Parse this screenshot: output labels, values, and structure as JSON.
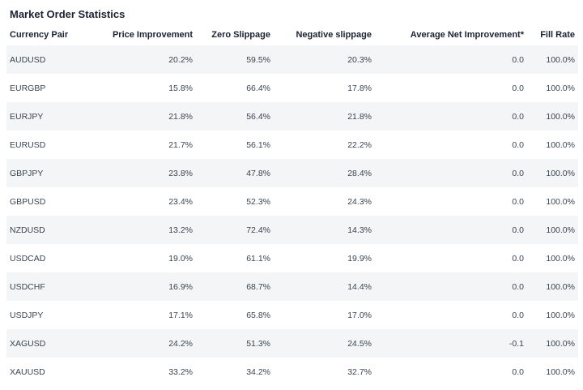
{
  "title": "Market Order Statistics",
  "table": {
    "headers": {
      "pair": "Currency Pair",
      "price_improvement": "Price Improvement",
      "zero_slippage": "Zero Slippage",
      "negative_slippage": "Negative slippage",
      "avg_net_improvement": "Average Net Improvement*",
      "fill_rate": "Fill Rate"
    },
    "rows": [
      {
        "pair": "AUDUSD",
        "price_improvement": "20.2%",
        "zero_slippage": "59.5%",
        "negative_slippage": "20.3%",
        "avg_net_improvement": "0.0",
        "fill_rate": "100.0%"
      },
      {
        "pair": "EURGBP",
        "price_improvement": "15.8%",
        "zero_slippage": "66.4%",
        "negative_slippage": "17.8%",
        "avg_net_improvement": "0.0",
        "fill_rate": "100.0%"
      },
      {
        "pair": "EURJPY",
        "price_improvement": "21.8%",
        "zero_slippage": "56.4%",
        "negative_slippage": "21.8%",
        "avg_net_improvement": "0.0",
        "fill_rate": "100.0%"
      },
      {
        "pair": "EURUSD",
        "price_improvement": "21.7%",
        "zero_slippage": "56.1%",
        "negative_slippage": "22.2%",
        "avg_net_improvement": "0.0",
        "fill_rate": "100.0%"
      },
      {
        "pair": "GBPJPY",
        "price_improvement": "23.8%",
        "zero_slippage": "47.8%",
        "negative_slippage": "28.4%",
        "avg_net_improvement": "0.0",
        "fill_rate": "100.0%"
      },
      {
        "pair": "GBPUSD",
        "price_improvement": "23.4%",
        "zero_slippage": "52.3%",
        "negative_slippage": "24.3%",
        "avg_net_improvement": "0.0",
        "fill_rate": "100.0%"
      },
      {
        "pair": "NZDUSD",
        "price_improvement": "13.2%",
        "zero_slippage": "72.4%",
        "negative_slippage": "14.3%",
        "avg_net_improvement": "0.0",
        "fill_rate": "100.0%"
      },
      {
        "pair": "USDCAD",
        "price_improvement": "19.0%",
        "zero_slippage": "61.1%",
        "negative_slippage": "19.9%",
        "avg_net_improvement": "0.0",
        "fill_rate": "100.0%"
      },
      {
        "pair": "USDCHF",
        "price_improvement": "16.9%",
        "zero_slippage": "68.7%",
        "negative_slippage": "14.4%",
        "avg_net_improvement": "0.0",
        "fill_rate": "100.0%"
      },
      {
        "pair": "USDJPY",
        "price_improvement": "17.1%",
        "zero_slippage": "65.8%",
        "negative_slippage": "17.0%",
        "avg_net_improvement": "0.0",
        "fill_rate": "100.0%"
      },
      {
        "pair": "XAGUSD",
        "price_improvement": "24.2%",
        "zero_slippage": "51.3%",
        "negative_slippage": "24.5%",
        "avg_net_improvement": "-0.1",
        "fill_rate": "100.0%"
      },
      {
        "pair": "XAUUSD",
        "price_improvement": "33.2%",
        "zero_slippage": "34.2%",
        "negative_slippage": "32.7%",
        "avg_net_improvement": "0.0",
        "fill_rate": "100.0%"
      }
    ]
  },
  "colors": {
    "stripe": "#f4f5f7",
    "header_text": "#1b2230",
    "cell_text": "#3a4452"
  }
}
